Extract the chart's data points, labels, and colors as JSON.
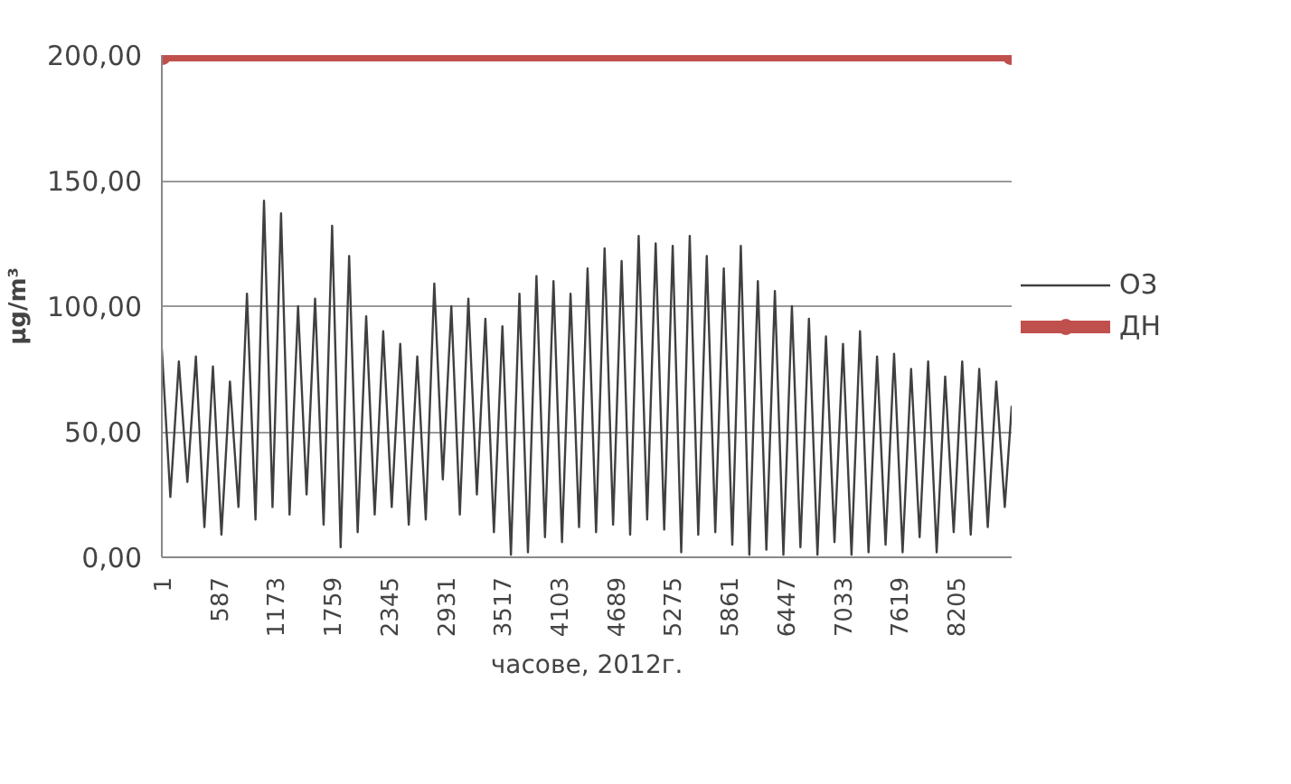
{
  "chart_data": {
    "type": "line",
    "xlabel": "часове, 2012г.",
    "ylabel": "μg/m³",
    "xlim": [
      1,
      8784
    ],
    "ylim": [
      0,
      200
    ],
    "xticks": [
      1,
      587,
      1173,
      1759,
      2345,
      2931,
      3517,
      4103,
      4689,
      5275,
      5861,
      6447,
      7033,
      7619,
      8205
    ],
    "yticks": [
      {
        "value": 0,
        "label": "0,00"
      },
      {
        "value": 50,
        "label": "50,00"
      },
      {
        "value": 100,
        "label": "100,00"
      },
      {
        "value": 150,
        "label": "150,00"
      },
      {
        "value": 200,
        "label": "200,00"
      }
    ],
    "grid": "y",
    "legend": "right",
    "line_style": "solid",
    "series": [
      {
        "name": "O3",
        "color": "#404040",
        "marker": "none",
        "x": [
          1,
          89,
          177,
          265,
          353,
          441,
          529,
          617,
          705,
          793,
          881,
          969,
          1057,
          1145,
          1233,
          1321,
          1409,
          1497,
          1585,
          1673,
          1761,
          1849,
          1937,
          2025,
          2113,
          2201,
          2289,
          2377,
          2465,
          2553,
          2641,
          2729,
          2817,
          2905,
          2993,
          3081,
          3169,
          3257,
          3345,
          3433,
          3521,
          3609,
          3697,
          3785,
          3873,
          3961,
          4049,
          4137,
          4225,
          4313,
          4401,
          4489,
          4577,
          4665,
          4753,
          4841,
          4929,
          5017,
          5105,
          5193,
          5281,
          5369,
          5457,
          5545,
          5633,
          5721,
          5809,
          5897,
          5985,
          6073,
          6161,
          6249,
          6337,
          6425,
          6513,
          6601,
          6689,
          6777,
          6865,
          6953,
          7041,
          7129,
          7217,
          7305,
          7393,
          7481,
          7569,
          7657,
          7745,
          7833,
          7921,
          8009,
          8097,
          8185,
          8273,
          8361,
          8449,
          8537,
          8625,
          8713,
          8784
        ],
        "values": [
          83,
          24,
          78,
          30,
          80,
          12,
          76,
          9,
          70,
          20,
          105,
          15,
          142,
          20,
          137,
          17,
          100,
          25,
          103,
          13,
          132,
          4,
          120,
          10,
          96,
          17,
          90,
          20,
          85,
          13,
          80,
          15,
          109,
          31,
          100,
          17,
          103,
          25,
          95,
          10,
          92,
          1,
          105,
          2,
          112,
          8,
          110,
          6,
          105,
          12,
          115,
          10,
          123,
          13,
          118,
          9,
          128,
          15,
          125,
          11,
          124,
          2,
          128,
          9,
          120,
          10,
          115,
          5,
          124,
          1,
          110,
          3,
          106,
          1,
          100,
          4,
          95,
          1,
          88,
          6,
          85,
          1,
          90,
          2,
          80,
          5,
          81,
          2,
          75,
          8,
          78,
          2,
          72,
          10,
          78,
          9,
          75,
          12,
          70,
          20,
          60
        ]
      },
      {
        "name": "ДН",
        "color": "#c0504d",
        "marker": "circle",
        "x": [
          1,
          8784
        ],
        "values": [
          200,
          200
        ]
      }
    ]
  }
}
